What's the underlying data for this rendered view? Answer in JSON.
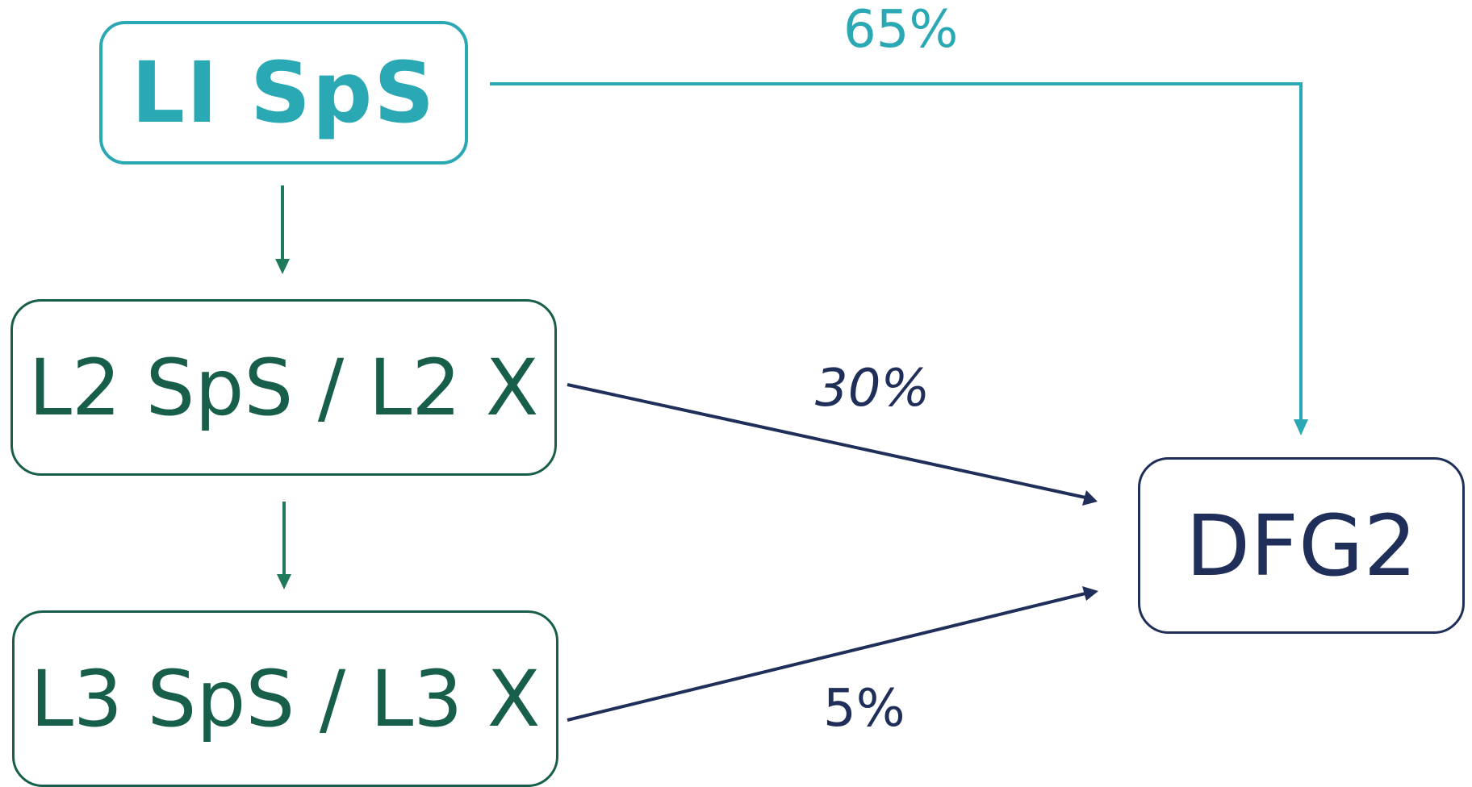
{
  "nodes": {
    "l1": "LI SpS",
    "l2": "L2 SpS / L2 X",
    "l3": "L3 SpS / L3 X",
    "dfg2": "DFG2"
  },
  "edges": {
    "l1_to_dfg2": "65%",
    "l2_to_dfg2": "30%",
    "l3_to_dfg2": "5%"
  },
  "colors": {
    "teal": "#2aa8b3",
    "green": "#175e4b",
    "navy": "#1f2f5a",
    "arrow_green": "#1f7a5a"
  }
}
